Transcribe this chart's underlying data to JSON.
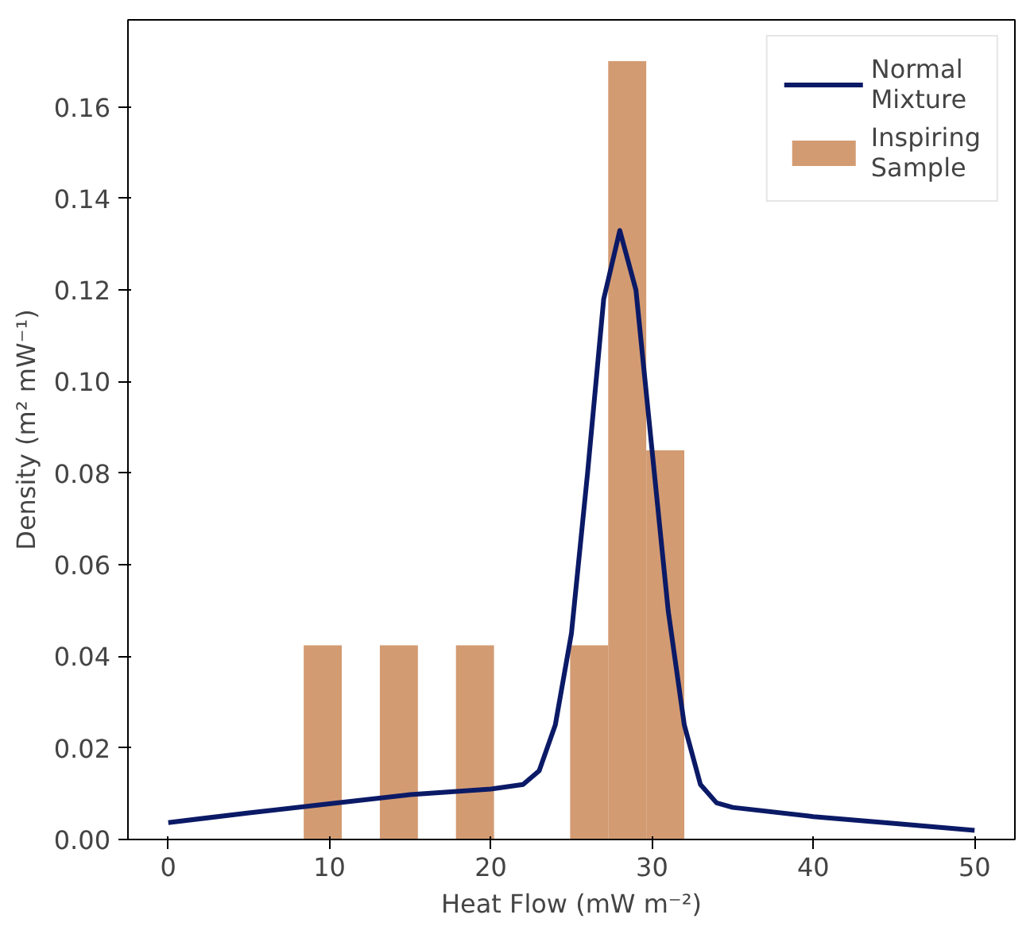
{
  "chart_data": {
    "type": "histogram",
    "xlabel": "Heat Flow (mW m⁻²)",
    "ylabel": "Density (m² mW⁻¹)",
    "series": [
      {
        "name": "Inspiring\nSample",
        "color": "#d39b72",
        "bins": [
          8.4,
          10.76,
          13.12,
          15.48,
          17.84,
          20.2,
          22.56,
          24.92,
          27.28,
          29.64,
          32.0
        ],
        "values": [
          0.0424,
          0,
          0.0424,
          0,
          0.0424,
          0,
          0,
          0.0424,
          0.17,
          0.085
        ]
      },
      {
        "name": "Normal\nMixture",
        "type": "line",
        "color": "#0b1a66",
        "x": [
          0,
          5,
          10,
          15,
          20,
          22,
          23,
          24,
          25,
          26,
          27,
          28,
          29,
          30,
          31,
          32,
          33,
          34,
          35,
          40,
          45,
          50
        ],
        "values": [
          0.0037,
          0.0058,
          0.0078,
          0.0098,
          0.011,
          0.012,
          0.015,
          0.025,
          0.045,
          0.08,
          0.118,
          0.133,
          0.12,
          0.085,
          0.05,
          0.025,
          0.012,
          0.008,
          0.007,
          0.005,
          0.0035,
          0.002
        ]
      }
    ],
    "xlim": [
      -2.5,
      52.5
    ],
    "ylim": [
      0,
      0.179
    ],
    "xticks": [
      0,
      10,
      20,
      30,
      40,
      50
    ],
    "yticks": [
      {
        "value": 0,
        "label": "0.00"
      },
      {
        "value": 0.02,
        "label": "0.02"
      },
      {
        "value": 0.04,
        "label": "0.04"
      },
      {
        "value": 0.06,
        "label": "0.06"
      },
      {
        "value": 0.08,
        "label": "0.08"
      },
      {
        "value": 0.1,
        "label": "0.10"
      },
      {
        "value": 0.12,
        "label": "0.12"
      },
      {
        "value": 0.14,
        "label": "0.14"
      },
      {
        "value": 0.16,
        "label": "0.16"
      }
    ],
    "grid": false,
    "legend": "top right"
  }
}
